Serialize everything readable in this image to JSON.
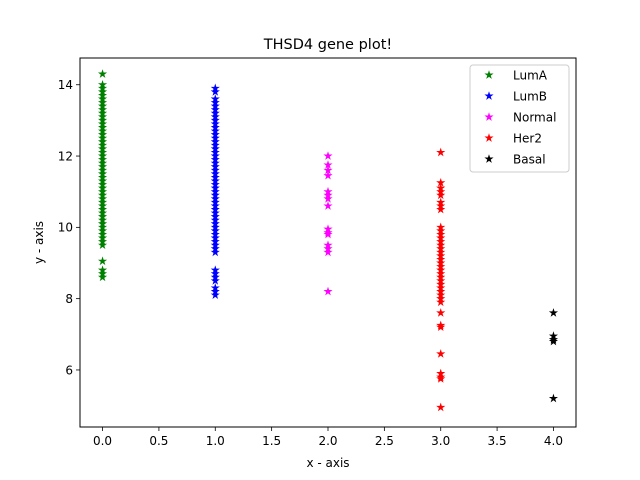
{
  "chart_data": {
    "type": "scatter",
    "title": "THSD4 gene plot!",
    "xlabel": "x - axis",
    "ylabel": "y - axis",
    "xlim": [
      -0.2,
      4.2
    ],
    "ylim": [
      4.4,
      14.75
    ],
    "x_ticks": [
      0.0,
      0.5,
      1.0,
      1.5,
      2.0,
      2.5,
      3.0,
      3.5,
      4.0
    ],
    "x_tick_labels": [
      "0.0",
      "0.5",
      "1.0",
      "1.5",
      "2.0",
      "2.5",
      "3.0",
      "3.5",
      "4.0"
    ],
    "y_ticks": [
      6,
      8,
      10,
      12,
      14
    ],
    "y_tick_labels": [
      "6",
      "8",
      "10",
      "12",
      "14"
    ],
    "grid": false,
    "legend_position": "top-right",
    "marker": "star",
    "series": [
      {
        "name": "LumA",
        "color": "#008000",
        "x": 0,
        "y": [
          14.3,
          14.0,
          13.9,
          13.8,
          13.7,
          13.6,
          13.5,
          13.4,
          13.3,
          13.2,
          13.1,
          13.0,
          12.9,
          12.8,
          12.7,
          12.6,
          12.5,
          12.4,
          12.3,
          12.2,
          12.1,
          12.0,
          11.9,
          11.8,
          11.7,
          11.6,
          11.5,
          11.4,
          11.3,
          11.2,
          11.1,
          11.0,
          10.9,
          10.8,
          10.7,
          10.6,
          10.5,
          10.4,
          10.3,
          10.2,
          10.1,
          10.0,
          9.9,
          9.8,
          9.7,
          9.6,
          9.5,
          9.05,
          8.8,
          8.7,
          8.6
        ]
      },
      {
        "name": "LumB",
        "color": "#0000ff",
        "x": 1,
        "y": [
          13.9,
          13.8,
          13.6,
          13.5,
          13.4,
          13.3,
          13.2,
          13.1,
          13.0,
          12.9,
          12.8,
          12.7,
          12.6,
          12.5,
          12.4,
          12.3,
          12.2,
          12.1,
          12.0,
          11.9,
          11.8,
          11.7,
          11.6,
          11.5,
          11.4,
          11.3,
          11.2,
          11.1,
          11.0,
          10.9,
          10.8,
          10.7,
          10.6,
          10.5,
          10.4,
          10.3,
          10.2,
          10.1,
          10.0,
          9.9,
          9.8,
          9.7,
          9.6,
          9.5,
          9.4,
          9.3,
          8.8,
          8.7,
          8.6,
          8.5,
          8.3,
          8.2,
          8.1
        ]
      },
      {
        "name": "Normal",
        "color": "#ff00ff",
        "x": 2,
        "y": [
          12.0,
          11.75,
          11.6,
          11.45,
          11.0,
          10.9,
          10.8,
          10.6,
          9.95,
          9.85,
          9.8,
          9.5,
          9.4,
          9.3,
          8.2
        ]
      },
      {
        "name": "Her2",
        "color": "#ff0000",
        "x": 3,
        "y": [
          12.1,
          11.25,
          11.1,
          11.0,
          10.9,
          10.7,
          10.6,
          10.5,
          10.0,
          9.9,
          9.8,
          9.7,
          9.6,
          9.5,
          9.4,
          9.3,
          9.2,
          9.1,
          9.0,
          8.9,
          8.8,
          8.7,
          8.6,
          8.5,
          8.4,
          8.3,
          8.2,
          8.1,
          8.0,
          7.9,
          7.6,
          7.25,
          7.2,
          6.45,
          5.9,
          5.8,
          5.75,
          4.95
        ]
      },
      {
        "name": "Basal",
        "color": "#000000",
        "x": 4,
        "y": [
          7.6,
          6.95,
          6.85,
          6.8,
          5.2
        ]
      }
    ]
  }
}
